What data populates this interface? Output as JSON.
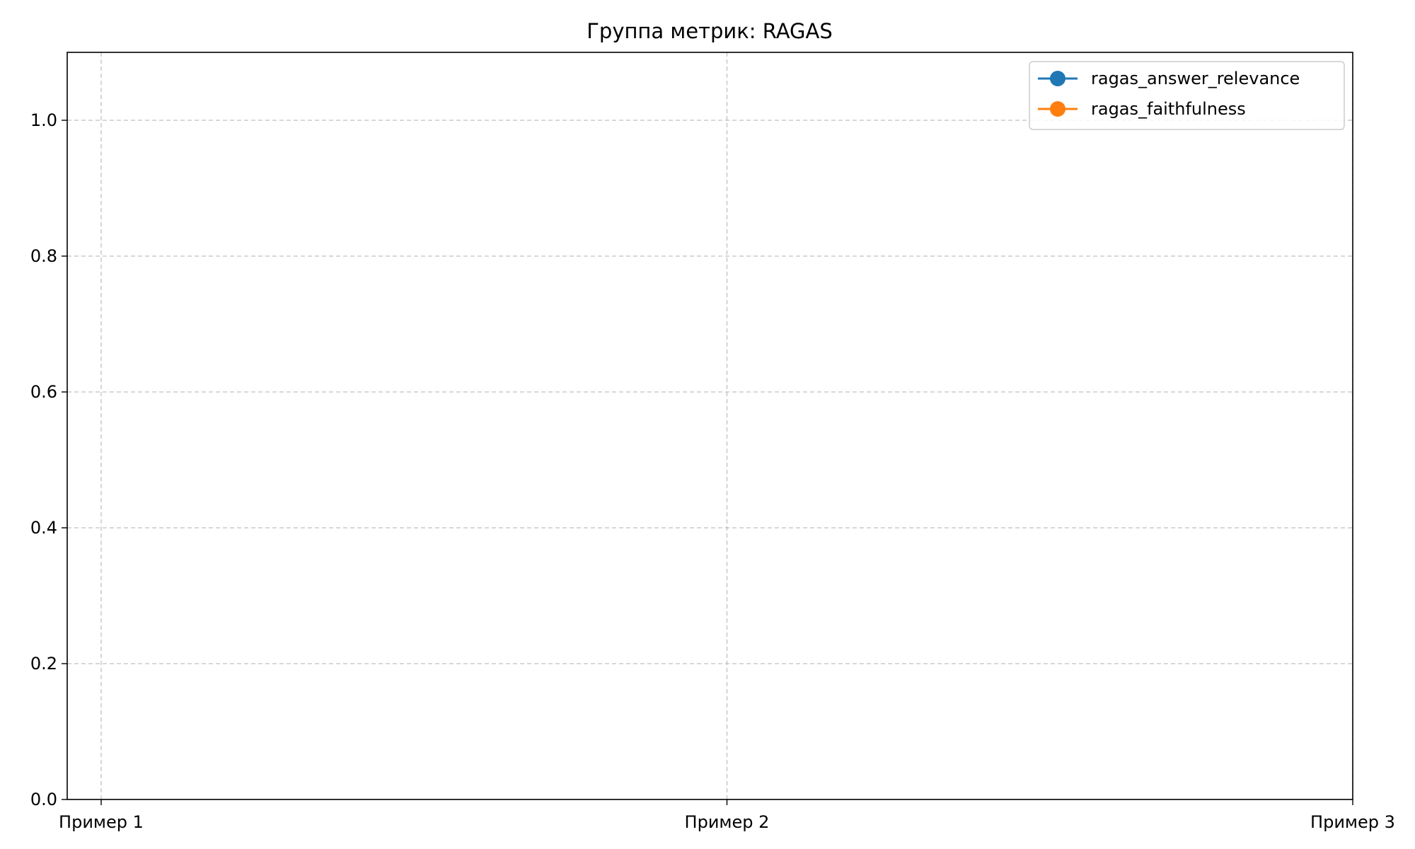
{
  "chart_data": {
    "type": "line",
    "title": "Группа метрик: RAGAS",
    "xlabel": "",
    "ylabel": "",
    "categories": [
      "Пример 1",
      "Пример 2",
      "Пример 3"
    ],
    "ylim": [
      0.0,
      1.1
    ],
    "yticks": [
      0.0,
      0.2,
      0.4,
      0.6,
      0.8,
      1.0
    ],
    "ytick_labels": [
      "0.0",
      "0.2",
      "0.4",
      "0.6",
      "0.8",
      "1.0"
    ],
    "grid": true,
    "grid_style": "dashed",
    "legend_position": "top-right",
    "series": [
      {
        "name": "ragas_answer_relevance",
        "color": "#1f77b4",
        "marker": "circle",
        "values": [
          null,
          null,
          null
        ]
      },
      {
        "name": "ragas_faithfulness",
        "color": "#ff7f0e",
        "marker": "circle",
        "values": [
          null,
          null,
          null
        ]
      }
    ]
  }
}
